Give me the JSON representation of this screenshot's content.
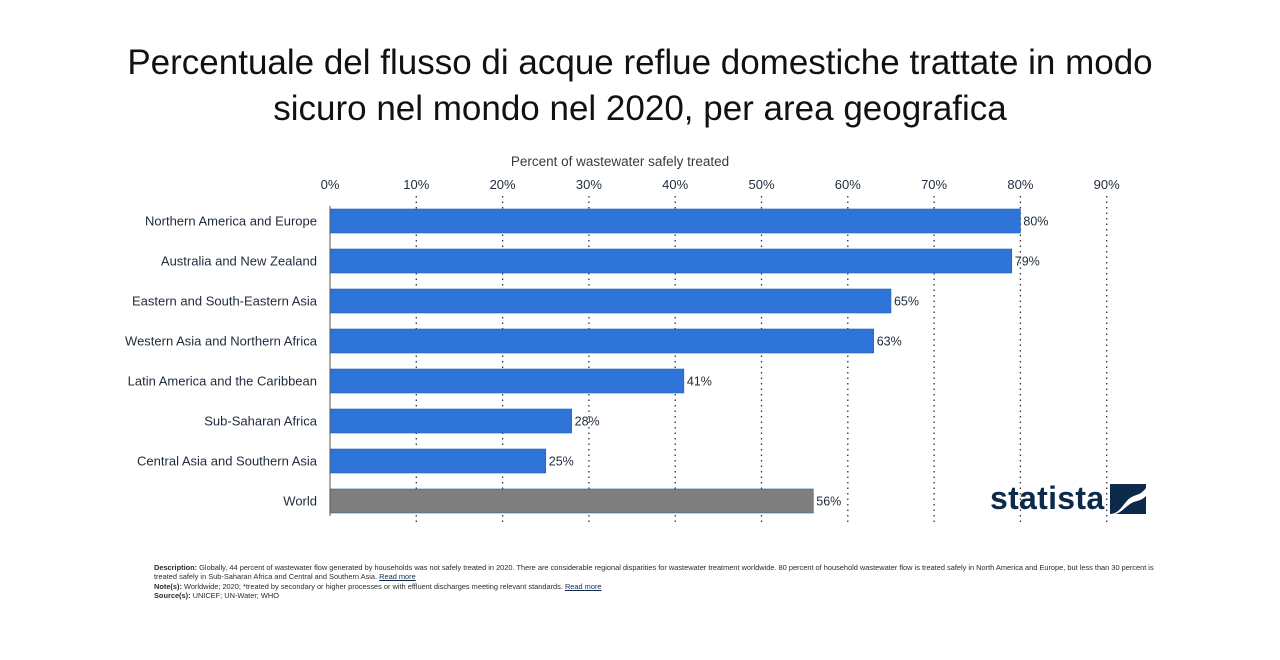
{
  "title": "Percentuale del flusso di acque reflue domestiche trattate in modo sicuro nel mondo nel 2020, per area geografica",
  "chart_data": {
    "type": "bar",
    "orientation": "horizontal",
    "xlabel": "Percent of wastewater safely treated",
    "xlim": [
      0,
      90
    ],
    "ticks": [
      "0%",
      "10%",
      "20%",
      "30%",
      "40%",
      "50%",
      "60%",
      "70%",
      "80%",
      "90%"
    ],
    "grid": "dotted vertical",
    "categories": [
      "Northern America and Europe",
      "Australia and New Zealand",
      "Eastern and South-Eastern Asia",
      "Western Asia and Northern Africa",
      "Latin America and the Caribbean",
      "Sub-Saharan Africa",
      "Central Asia and Southern Asia",
      "World"
    ],
    "values": [
      80,
      79,
      65,
      63,
      41,
      28,
      25,
      56
    ],
    "value_labels": [
      "80%",
      "79%",
      "65%",
      "63%",
      "41%",
      "28%",
      "25%",
      "56%"
    ],
    "colors": [
      "#2f74d8",
      "#2f74d8",
      "#2f74d8",
      "#2f74d8",
      "#2f74d8",
      "#2f74d8",
      "#2f74d8",
      "#7f7f7f"
    ]
  },
  "brand": {
    "name": "statista",
    "color": "#0d2a4a"
  },
  "footer": {
    "description_label": "Description:",
    "description": " Globally, 44 percent of wastewater flow generated by households was not safely treated in 2020. There are considerable regional disparities for wastewater treatment worldwide. 80 percent of household wastewater flow is treated safely in North America and Europe, but less than 30 percent is treated safely in Sub-Saharan Africa and Central and Southern Asia.",
    "read_more": "Read more",
    "note_label": "Note(s):",
    "note": " Worldwide; 2020; *treated by secondary or higher processes or with effluent discharges meeting relevant standards.",
    "source_label": "Source(s):",
    "source": " UNICEF; UN-Water; WHO"
  }
}
